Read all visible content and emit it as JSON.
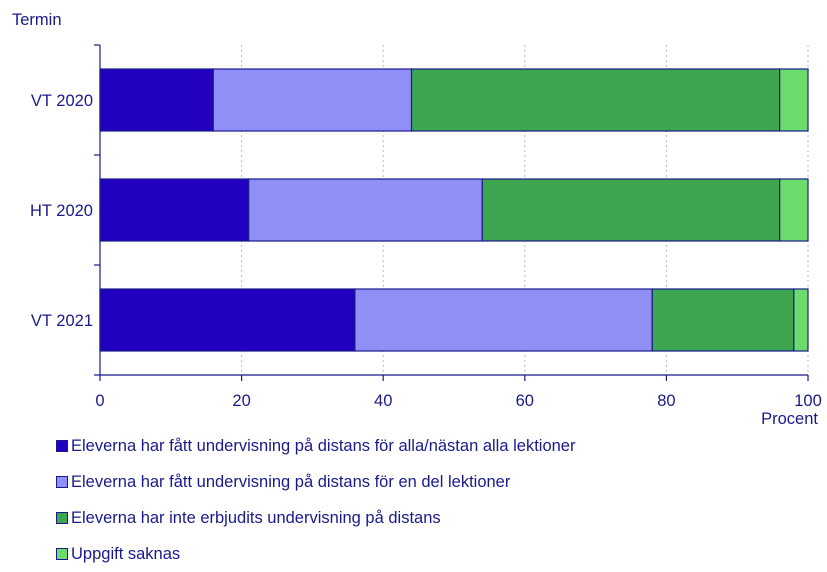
{
  "chart_data": {
    "type": "bar",
    "orientation": "horizontal",
    "stacked": true,
    "ylabel": "Termin",
    "xlabel": "Procent",
    "xlim": [
      0,
      100
    ],
    "xticks": [
      0,
      20,
      40,
      60,
      80,
      100
    ],
    "grid": "vertical dashed",
    "legend_position": "bottom",
    "categories": [
      "VT 2020",
      "HT 2020",
      "VT 2021"
    ],
    "series": [
      {
        "name": "Eleverna har fått undervisning på distans för alla/nästan alla lektioner",
        "color": "#2200c0",
        "values": [
          16,
          21,
          36
        ]
      },
      {
        "name": "Eleverna har fått undervisning på distans för en del lektioner",
        "color": "#8f8ff5",
        "values": [
          28,
          33,
          42
        ]
      },
      {
        "name": "Eleverna har inte erbjudits undervisning på distans",
        "color": "#3ea651",
        "values": [
          52,
          42,
          20
        ]
      },
      {
        "name": "Uppgift saknas",
        "color": "#6bdc6b",
        "values": [
          4,
          4,
          2
        ]
      }
    ]
  }
}
